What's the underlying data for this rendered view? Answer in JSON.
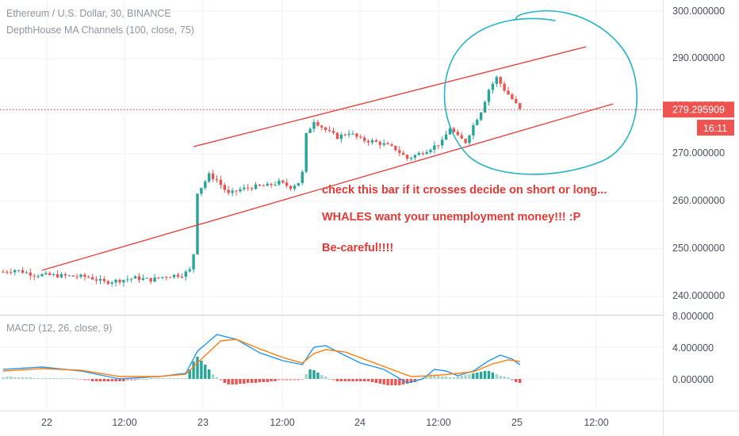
{
  "header": {
    "symbol_line": "Ethereum / U.S. Dollar, 30, BINANCE",
    "indicator_line": "DepthHouse MA Channels (100, close, 75)",
    "macd_line": "MACD (12, 26, close, 9)"
  },
  "price_axis": {
    "labels": [
      "300.000000",
      "290.000000",
      "280.000000",
      "270.000000",
      "260.000000",
      "250.000000",
      "240.000000"
    ],
    "current_price": "279.295909",
    "countdown": "16:11"
  },
  "macd_axis": {
    "labels": [
      "8.000000",
      "4.000000",
      "0.000000"
    ]
  },
  "time_axis": {
    "labels": [
      "22",
      "12:00",
      "23",
      "12:00",
      "24",
      "12:00",
      "25",
      "12:00"
    ]
  },
  "annotations": {
    "line1": "check this bar if it crosses decide on short or long...",
    "line2": "WHALES want your unemployment money!!! :P",
    "line3": "Be-careful!!!!"
  },
  "colors": {
    "up": "#26a69a",
    "down": "#ef5350",
    "channel": "#e53935",
    "circle": "#26b5c8",
    "macd_line": "#2196f3",
    "signal_line": "#ff7f0e",
    "hist_up": "#a5d6c9",
    "hist_down": "#f7a8a8"
  },
  "chart_data": [
    {
      "type": "candlestick",
      "title": "Ethereum / U.S. Dollar, 30, BINANCE",
      "x": [
        "22",
        "12:00",
        "23",
        "12:00",
        "24",
        "12:00",
        "25",
        "12:00"
      ],
      "ylim": [
        237,
        302
      ],
      "close_path": [
        [
          0,
          245.2
        ],
        [
          3,
          245.6
        ],
        [
          8,
          244.6
        ],
        [
          14,
          244.4
        ],
        [
          22,
          244.1
        ],
        [
          26,
          243.0
        ],
        [
          30,
          243.4
        ],
        [
          34,
          243.9
        ],
        [
          38,
          243.5
        ],
        [
          42,
          244.3
        ],
        [
          46,
          244.6
        ],
        [
          48,
          245.5
        ],
        [
          49,
          249.0
        ],
        [
          50,
          262.0
        ],
        [
          51,
          263.0
        ],
        [
          53,
          265.5
        ],
        [
          55,
          264.5
        ],
        [
          58,
          261.5
        ],
        [
          61,
          262.5
        ],
        [
          64,
          263.0
        ],
        [
          68,
          263.3
        ],
        [
          71,
          264.0
        ],
        [
          74,
          263.0
        ],
        [
          76,
          264.0
        ],
        [
          77,
          266.0
        ],
        [
          78,
          274.0
        ],
        [
          80,
          277.0
        ],
        [
          83,
          275.0
        ],
        [
          86,
          273.5
        ],
        [
          89,
          274.5
        ],
        [
          92,
          273.0
        ],
        [
          95,
          272.6
        ],
        [
          98,
          272.0
        ],
        [
          101,
          271.0
        ],
        [
          104,
          269.0
        ],
        [
          107,
          270.0
        ],
        [
          110,
          271.2
        ],
        [
          113,
          272.5
        ],
        [
          115,
          275.5
        ],
        [
          117,
          273.5
        ],
        [
          119,
          272.5
        ],
        [
          121,
          276.0
        ],
        [
          123,
          279.0
        ],
        [
          125,
          283.5
        ],
        [
          127,
          286.0
        ],
        [
          129,
          283.5
        ],
        [
          131,
          281.5
        ],
        [
          133,
          279.3
        ]
      ],
      "channel_upper": [
        [
          49,
          271.5
        ],
        [
          150,
          292.5
        ]
      ],
      "channel_lower": [
        [
          10,
          245.5
        ],
        [
          157,
          280.5
        ]
      ],
      "current_price": 279.295909
    },
    {
      "type": "line",
      "title": "MACD (12, 26, close, 9)",
      "ylim": [
        -2,
        8
      ],
      "series": [
        {
          "name": "MACD",
          "points": [
            [
              0,
              1.2
            ],
            [
              10,
              1.5
            ],
            [
              20,
              1.0
            ],
            [
              30,
              0.0
            ],
            [
              40,
              0.3
            ],
            [
              47,
              0.7
            ],
            [
              50,
              3.5
            ],
            [
              55,
              5.6
            ],
            [
              60,
              5.0
            ],
            [
              66,
              3.3
            ],
            [
              72,
              2.3
            ],
            [
              77,
              1.8
            ],
            [
              80,
              4.0
            ],
            [
              83,
              4.2
            ],
            [
              87,
              3.2
            ],
            [
              92,
              2.0
            ],
            [
              98,
              1.2
            ],
            [
              104,
              -0.5
            ],
            [
              108,
              0.0
            ],
            [
              111,
              1.2
            ],
            [
              114,
              1.0
            ],
            [
              117,
              0.4
            ],
            [
              121,
              1.0
            ],
            [
              125,
              2.3
            ],
            [
              128,
              3.0
            ],
            [
              131,
              2.5
            ],
            [
              133,
              1.8
            ]
          ]
        },
        {
          "name": "Signal",
          "points": [
            [
              0,
              1.0
            ],
            [
              10,
              1.3
            ],
            [
              20,
              1.1
            ],
            [
              30,
              0.3
            ],
            [
              40,
              0.3
            ],
            [
              47,
              0.6
            ],
            [
              51,
              2.5
            ],
            [
              56,
              4.8
            ],
            [
              60,
              5.0
            ],
            [
              66,
              3.8
            ],
            [
              72,
              2.7
            ],
            [
              77,
              2.0
            ],
            [
              80,
              3.2
            ],
            [
              83,
              3.7
            ],
            [
              88,
              3.4
            ],
            [
              94,
              2.3
            ],
            [
              100,
              1.2
            ],
            [
              105,
              0.3
            ],
            [
              110,
              0.4
            ],
            [
              115,
              0.6
            ],
            [
              121,
              0.9
            ],
            [
              126,
              1.9
            ],
            [
              130,
              2.4
            ],
            [
              133,
              2.2
            ]
          ]
        }
      ],
      "histogram": [
        0.2,
        0.3,
        0.3,
        0.2,
        0.2,
        0.2,
        0.2,
        0.2,
        0.1,
        0.1,
        0.1,
        0.1,
        0.1,
        0.1,
        0.1,
        0.1,
        0.1,
        0.1,
        0.1,
        -0.1,
        -0.1,
        -0.2,
        -0.2,
        -0.3,
        -0.3,
        -0.3,
        -0.3,
        -0.3,
        -0.3,
        -0.3,
        -0.3,
        -0.3,
        -0.2,
        -0.2,
        -0.2,
        -0.1,
        -0.1,
        -0.1,
        0.1,
        0.1,
        0.1,
        0.1,
        0.1,
        0.1,
        0.1,
        0.1,
        0.1,
        0.1,
        1.2,
        2.2,
        2.8,
        2.3,
        1.8,
        1.2,
        0.6,
        0.2,
        -0.2,
        -0.5,
        -0.7,
        -0.7,
        -0.7,
        -0.6,
        -0.6,
        -0.5,
        -0.5,
        -0.5,
        -0.4,
        -0.4,
        -0.4,
        -0.3,
        -0.3,
        -0.2,
        -0.2,
        -0.2,
        -0.2,
        -0.2,
        -0.2,
        -0.1,
        0.6,
        1.2,
        1.1,
        0.8,
        0.5,
        0.3,
        0.0,
        -0.2,
        -0.3,
        -0.3,
        -0.3,
        -0.3,
        -0.3,
        -0.3,
        -0.3,
        -0.3,
        -0.3,
        -0.4,
        -0.5,
        -0.6,
        -0.7,
        -0.8,
        -0.8,
        -0.8,
        -0.8,
        -0.7,
        -0.6,
        -0.5,
        -0.4,
        -0.2,
        0.2,
        0.4,
        0.6,
        0.5,
        0.4,
        0.3,
        0.3,
        0.2,
        0.2,
        0.3,
        0.4,
        0.5,
        0.6,
        0.7,
        0.8,
        0.9,
        1.0,
        1.0,
        0.8,
        0.6,
        0.4,
        0.3,
        0.2,
        -0.2,
        -0.4,
        -0.5
      ]
    }
  ]
}
